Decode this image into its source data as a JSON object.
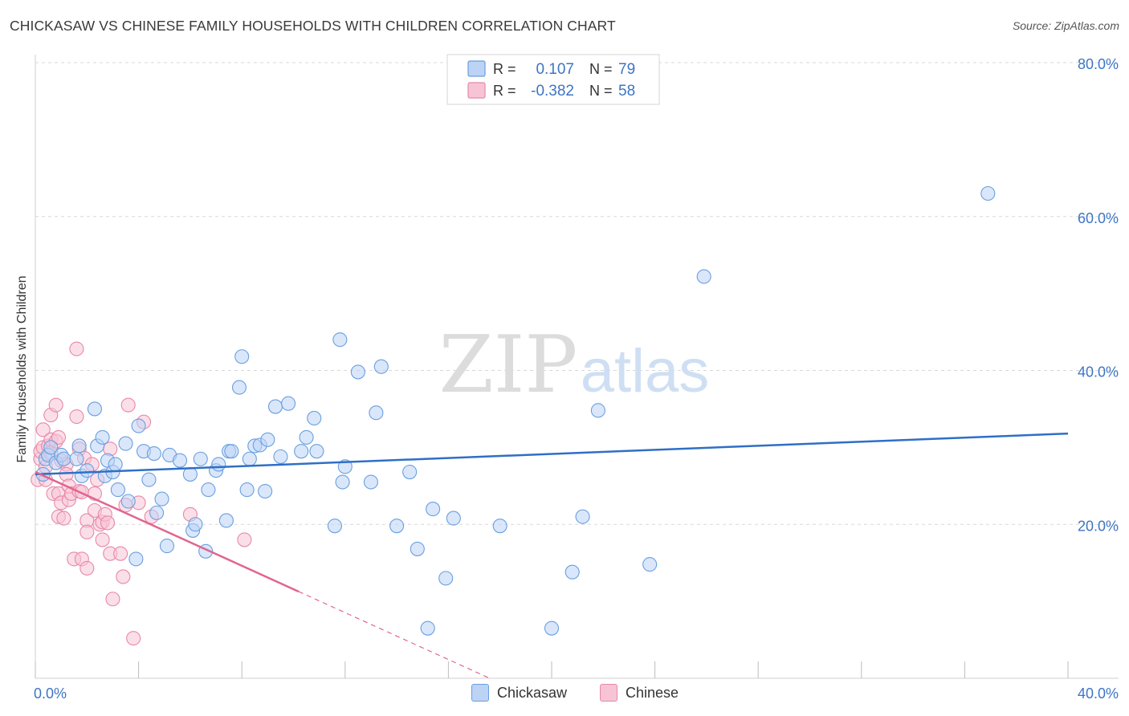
{
  "title": "CHICKASAW VS CHINESE FAMILY HOUSEHOLDS WITH CHILDREN CORRELATION CHART",
  "source": "Source: ZipAtlas.com",
  "watermark": {
    "part1": "ZIP",
    "part2": "atlas"
  },
  "colors": {
    "blue": "#6a9fe0",
    "blue_fill": "#bcd3f5",
    "blue_line": "#2f6fc6",
    "pink": "#e888a8",
    "pink_fill": "#f7c4d6",
    "pink_line": "#e06690",
    "axis_label": "#3d75c4",
    "grid": "#d8d8d8"
  },
  "legend": {
    "r_label": "R =",
    "n_label": "N =",
    "series": [
      {
        "name": "Chickasaw",
        "r": "0.107",
        "n": "79"
      },
      {
        "name": "Chinese",
        "r": "-0.382",
        "n": "58"
      }
    ]
  },
  "chart_data": {
    "type": "scatter",
    "title": "CHICKASAW VS CHINESE FAMILY HOUSEHOLDS WITH CHILDREN CORRELATION CHART",
    "xlabel": "",
    "ylabel": "Family Households with Children",
    "xlim": [
      0,
      40
    ],
    "ylim": [
      0,
      80
    ],
    "x_tick_labels": [
      "0.0%",
      "40.0%"
    ],
    "y_ticks": [
      20,
      40,
      60,
      80
    ],
    "y_tick_labels": [
      "20.0%",
      "40.0%",
      "60.0%",
      "80.0%"
    ],
    "grid": true,
    "legend_position": "top-center",
    "series": [
      {
        "name": "Chickasaw",
        "color": "#6a9fe0",
        "trend": {
          "x": [
            0,
            40
          ],
          "y": [
            26.5,
            31.8
          ],
          "solid_until": 40
        },
        "points": [
          [
            0.3,
            26.5
          ],
          [
            0.4,
            28.5
          ],
          [
            0.5,
            29
          ],
          [
            0.6,
            30
          ],
          [
            0.8,
            28
          ],
          [
            1.0,
            29
          ],
          [
            1.1,
            28.5
          ],
          [
            1.6,
            28.5
          ],
          [
            1.7,
            30.2
          ],
          [
            1.8,
            26.3
          ],
          [
            2.0,
            27
          ],
          [
            2.3,
            35
          ],
          [
            2.4,
            30.2
          ],
          [
            2.6,
            31.3
          ],
          [
            2.7,
            26.3
          ],
          [
            2.8,
            28.3
          ],
          [
            3.0,
            26.8
          ],
          [
            3.1,
            27.8
          ],
          [
            3.2,
            24.5
          ],
          [
            3.5,
            30.5
          ],
          [
            3.6,
            23
          ],
          [
            3.9,
            15.5
          ],
          [
            4.0,
            32.8
          ],
          [
            4.2,
            29.5
          ],
          [
            4.4,
            25.8
          ],
          [
            4.6,
            29.2
          ],
          [
            4.7,
            21.5
          ],
          [
            4.9,
            23.3
          ],
          [
            5.1,
            17.2
          ],
          [
            5.2,
            29
          ],
          [
            5.6,
            28.3
          ],
          [
            6.0,
            26.5
          ],
          [
            6.1,
            19.2
          ],
          [
            6.2,
            20.0
          ],
          [
            6.4,
            28.5
          ],
          [
            6.6,
            16.5
          ],
          [
            6.7,
            24.5
          ],
          [
            7.0,
            27
          ],
          [
            7.1,
            27.8
          ],
          [
            7.4,
            20.5
          ],
          [
            7.5,
            29.5
          ],
          [
            7.6,
            29.5
          ],
          [
            7.9,
            37.8
          ],
          [
            8.0,
            41.8
          ],
          [
            8.2,
            24.5
          ],
          [
            8.3,
            28.5
          ],
          [
            8.5,
            30.2
          ],
          [
            8.7,
            30.3
          ],
          [
            8.9,
            24.3
          ],
          [
            9.0,
            31.0
          ],
          [
            9.3,
            35.3
          ],
          [
            9.5,
            28.8
          ],
          [
            9.8,
            35.7
          ],
          [
            10.3,
            29.5
          ],
          [
            10.5,
            31.3
          ],
          [
            10.8,
            33.8
          ],
          [
            10.9,
            29.5
          ],
          [
            11.6,
            19.8
          ],
          [
            11.8,
            44
          ],
          [
            11.9,
            25.5
          ],
          [
            12.0,
            27.5
          ],
          [
            12.5,
            39.8
          ],
          [
            13.0,
            25.5
          ],
          [
            13.2,
            34.5
          ],
          [
            13.4,
            40.5
          ],
          [
            14.0,
            19.8
          ],
          [
            14.5,
            26.8
          ],
          [
            14.8,
            16.8
          ],
          [
            15.2,
            6.5
          ],
          [
            15.4,
            22.0
          ],
          [
            15.9,
            13
          ],
          [
            16.2,
            20.8
          ],
          [
            18.0,
            19.8
          ],
          [
            20.0,
            6.5
          ],
          [
            20.8,
            13.8
          ],
          [
            21.2,
            21.0
          ],
          [
            21.8,
            34.8
          ],
          [
            23.8,
            14.8
          ],
          [
            25.9,
            52.2
          ],
          [
            36.9,
            63.0
          ]
        ]
      },
      {
        "name": "Chinese",
        "color": "#e888a8",
        "trend": {
          "x": [
            0,
            17.6
          ],
          "y": [
            26.8,
            0
          ],
          "solid_until": 10.2
        },
        "points": [
          [
            0.1,
            25.8
          ],
          [
            0.2,
            28.5
          ],
          [
            0.2,
            29.5
          ],
          [
            0.3,
            32.3
          ],
          [
            0.3,
            30
          ],
          [
            0.4,
            27.5
          ],
          [
            0.4,
            25.8
          ],
          [
            0.5,
            30.2
          ],
          [
            0.6,
            34.2
          ],
          [
            0.6,
            31
          ],
          [
            0.6,
            29.3
          ],
          [
            0.7,
            24
          ],
          [
            0.8,
            30.8
          ],
          [
            0.8,
            35.5
          ],
          [
            0.9,
            31.3
          ],
          [
            0.9,
            21
          ],
          [
            0.9,
            24
          ],
          [
            1.0,
            22.8
          ],
          [
            1.0,
            28.3
          ],
          [
            1.1,
            20.8
          ],
          [
            1.2,
            27.8
          ],
          [
            1.2,
            26.5
          ],
          [
            1.3,
            25.0
          ],
          [
            1.3,
            23.2
          ],
          [
            1.4,
            24.0
          ],
          [
            1.5,
            15.5
          ],
          [
            1.6,
            42.8
          ],
          [
            1.6,
            34.0
          ],
          [
            1.7,
            29.8
          ],
          [
            1.7,
            24.3
          ],
          [
            1.8,
            24.2
          ],
          [
            1.8,
            15.5
          ],
          [
            1.9,
            28.6
          ],
          [
            2.0,
            14.3
          ],
          [
            2.0,
            20.5
          ],
          [
            2.0,
            19.0
          ],
          [
            2.2,
            27.8
          ],
          [
            2.3,
            24.0
          ],
          [
            2.3,
            21.8
          ],
          [
            2.4,
            25.8
          ],
          [
            2.5,
            20.0
          ],
          [
            2.6,
            20.3
          ],
          [
            2.6,
            18.0
          ],
          [
            2.7,
            21.3
          ],
          [
            2.8,
            20.2
          ],
          [
            2.9,
            29.8
          ],
          [
            2.9,
            16.2
          ],
          [
            3.0,
            10.3
          ],
          [
            3.3,
            16.2
          ],
          [
            3.4,
            13.2
          ],
          [
            3.5,
            22.5
          ],
          [
            3.6,
            35.5
          ],
          [
            3.8,
            5.2
          ],
          [
            4.0,
            22.8
          ],
          [
            4.2,
            33.3
          ],
          [
            4.5,
            21.0
          ],
          [
            6.0,
            21.3
          ],
          [
            8.1,
            18.0
          ]
        ]
      }
    ]
  }
}
